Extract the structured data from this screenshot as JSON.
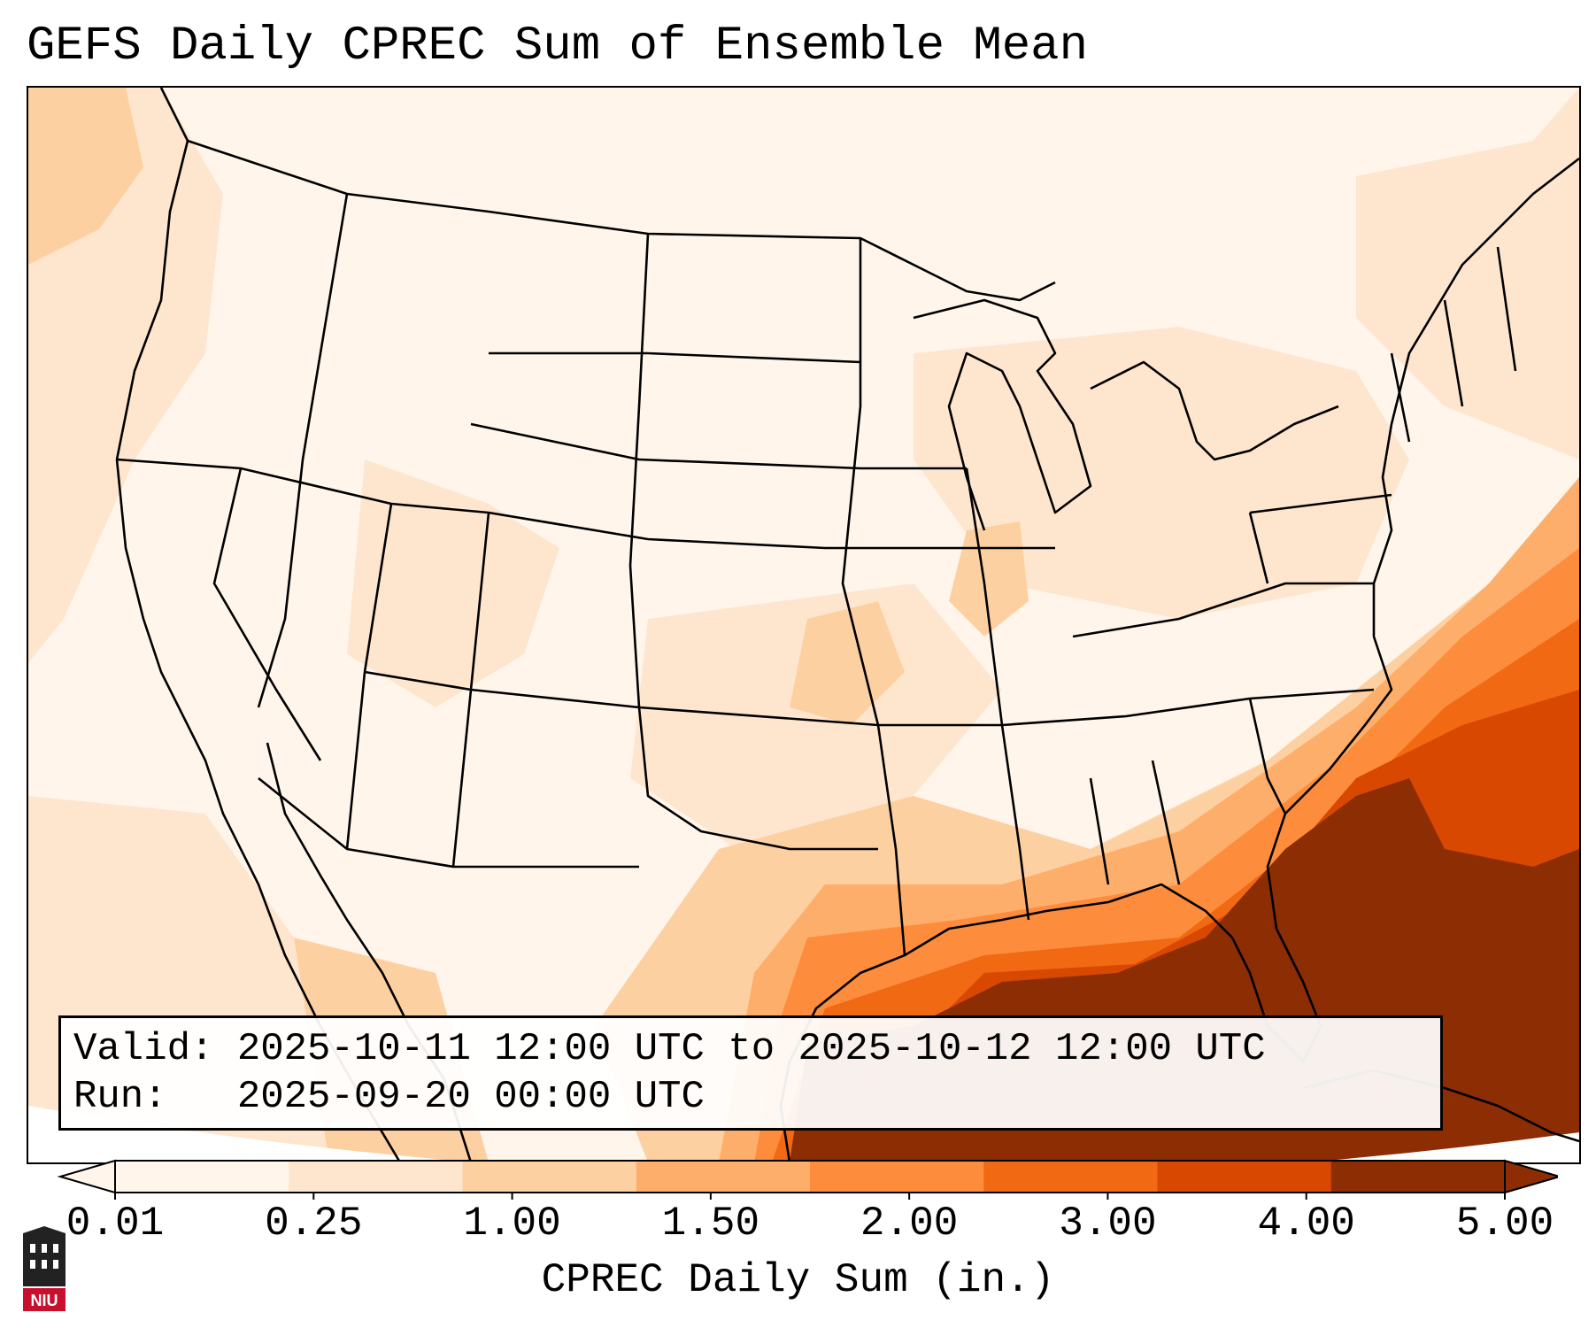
{
  "title": "GEFS Daily CPREC Sum of Ensemble Mean",
  "valid_text": "Valid: 2025-10-11 12:00 UTC to 2025-10-12 12:00 UTC",
  "run_text": "Run:   2025-09-20 00:00 UTC",
  "colorbar": {
    "label": "CPREC Daily Sum (in.)",
    "ticks": [
      "0.01",
      "0.25",
      "1.00",
      "1.50",
      "2.00",
      "3.00",
      "4.00",
      "5.00"
    ],
    "colors": [
      "#fff5eb",
      "#fee6ce",
      "#fdd0a2",
      "#fdae6b",
      "#fd8d3c",
      "#f16913",
      "#d94801",
      "#8c2d04"
    ],
    "extend": "both"
  },
  "logo_text": "NIU",
  "map": {
    "projection": "Lambert conformal",
    "region": "Continental United States",
    "shading": "orange sequential"
  }
}
